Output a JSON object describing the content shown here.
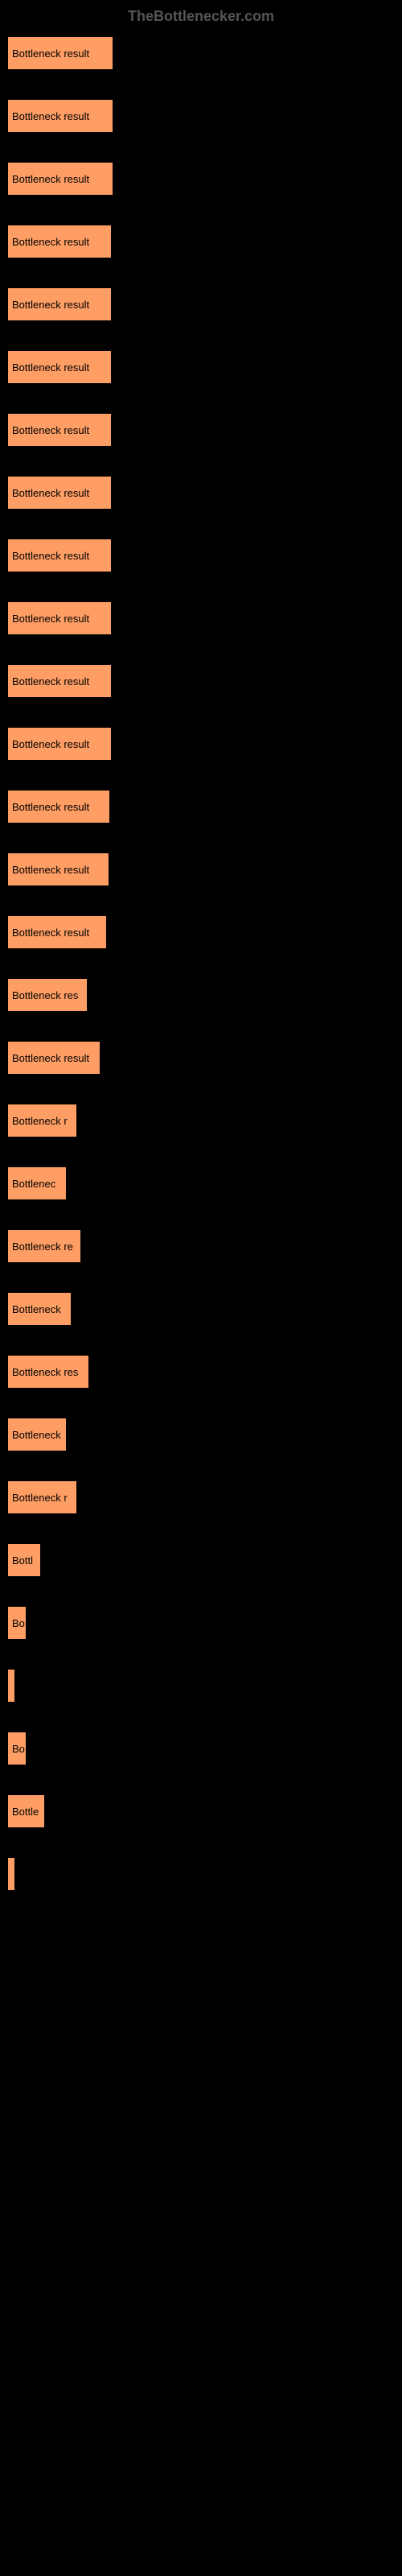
{
  "watermark": "TheBottlenecker.com",
  "chart": {
    "type": "bar",
    "background_color": "#000000",
    "bar_color": "#ff9e64",
    "label_color": "#000000",
    "max_width": 130,
    "bars": [
      {
        "label": "Bottleneck result",
        "width": 130
      },
      {
        "label": "Bottleneck result",
        "width": 130
      },
      {
        "label": "Bottleneck result",
        "width": 130
      },
      {
        "label": "Bottleneck result",
        "width": 128
      },
      {
        "label": "Bottleneck result",
        "width": 128
      },
      {
        "label": "Bottleneck result",
        "width": 128
      },
      {
        "label": "Bottleneck result",
        "width": 128
      },
      {
        "label": "Bottleneck result",
        "width": 128
      },
      {
        "label": "Bottleneck result",
        "width": 128
      },
      {
        "label": "Bottleneck result",
        "width": 128
      },
      {
        "label": "Bottleneck result",
        "width": 128
      },
      {
        "label": "Bottleneck result",
        "width": 128
      },
      {
        "label": "Bottleneck result",
        "width": 126
      },
      {
        "label": "Bottleneck result",
        "width": 125
      },
      {
        "label": "Bottleneck result",
        "width": 122
      },
      {
        "label": "Bottleneck res",
        "width": 98
      },
      {
        "label": "Bottleneck result",
        "width": 114
      },
      {
        "label": "Bottleneck r",
        "width": 85
      },
      {
        "label": "Bottlenec",
        "width": 72
      },
      {
        "label": "Bottleneck re",
        "width": 90
      },
      {
        "label": "Bottleneck",
        "width": 78
      },
      {
        "label": "Bottleneck res",
        "width": 100
      },
      {
        "label": "Bottleneck",
        "width": 72
      },
      {
        "label": "Bottleneck r",
        "width": 85
      },
      {
        "label": "Bottl",
        "width": 40
      },
      {
        "label": "Bo",
        "width": 22
      },
      {
        "label": "",
        "width": 8
      },
      {
        "label": "Bo",
        "width": 22
      },
      {
        "label": "Bottle",
        "width": 45
      },
      {
        "label": "",
        "width": 8
      }
    ]
  }
}
